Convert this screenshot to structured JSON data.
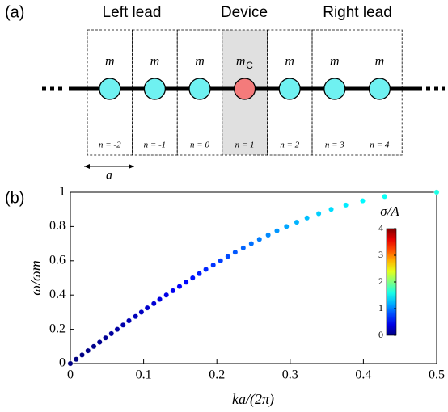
{
  "diagram": {
    "panel_label": "(a)",
    "regions": [
      "Left lead",
      "Device",
      "Right lead"
    ],
    "sites": [
      {
        "mass": "m",
        "index": "n = -2"
      },
      {
        "mass": "m",
        "index": "n = -1"
      },
      {
        "mass": "m",
        "index": "n = 0"
      },
      {
        "mass": "m",
        "subscript": "C",
        "index": "n = 1"
      },
      {
        "mass": "m",
        "index": "n = 2"
      },
      {
        "mass": "m",
        "index": "n = 3"
      },
      {
        "mass": "m",
        "index": "n = 4"
      }
    ],
    "spacing_label": "a"
  },
  "chart_data": {
    "type": "scatter",
    "panel_label": "(b)",
    "xlabel": "ka/(2π)",
    "ylabel": "ω/ωm",
    "x": [
      0,
      0.008,
      0.016,
      0.024,
      0.032,
      0.04,
      0.048,
      0.056,
      0.064,
      0.072,
      0.08,
      0.089,
      0.097,
      0.105,
      0.114,
      0.122,
      0.131,
      0.14,
      0.149,
      0.158,
      0.167,
      0.176,
      0.185,
      0.195,
      0.205,
      0.215,
      0.225,
      0.236,
      0.247,
      0.258,
      0.27,
      0.282,
      0.295,
      0.309,
      0.323,
      0.339,
      0.356,
      0.376,
      0.399,
      0.429,
      0.5
    ],
    "series": [
      {
        "name": "σ/A",
        "values": [
          0,
          0.025,
          0.05,
          0.075,
          0.1,
          0.125,
          0.15,
          0.175,
          0.2,
          0.225,
          0.25,
          0.275,
          0.3,
          0.325,
          0.35,
          0.375,
          0.4,
          0.425,
          0.45,
          0.475,
          0.5,
          0.525,
          0.55,
          0.575,
          0.6,
          0.625,
          0.65,
          0.675,
          0.7,
          0.725,
          0.75,
          0.775,
          0.8,
          0.825,
          0.85,
          0.875,
          0.9,
          0.925,
          0.95,
          0.975,
          1
        ],
        "color_values": [
          0,
          0.01,
          0.02,
          0.03,
          0.05,
          0.07,
          0.09,
          0.12,
          0.14,
          0.17,
          0.2,
          0.23,
          0.26,
          0.3,
          0.33,
          0.37,
          0.41,
          0.44,
          0.48,
          0.52,
          0.57,
          0.61,
          0.65,
          0.7,
          0.74,
          0.79,
          0.84,
          0.89,
          0.94,
          0.99,
          1.04,
          1.09,
          1.15,
          1.2,
          1.25,
          1.31,
          1.37,
          1.42,
          1.48,
          1.54,
          1.6
        ]
      }
    ],
    "xlim": [
      0,
      0.5
    ],
    "xticks": [
      0,
      0.1,
      0.2,
      0.3,
      0.4,
      0.5
    ],
    "ylim": [
      0,
      1
    ],
    "yticks": [
      0,
      0.2,
      0.4,
      0.6,
      0.8,
      1
    ],
    "colormap": "jet",
    "clim": [
      0,
      4
    ],
    "cticks": [
      0,
      1,
      2,
      3,
      4
    ],
    "colorbar_label": "σ/A"
  }
}
